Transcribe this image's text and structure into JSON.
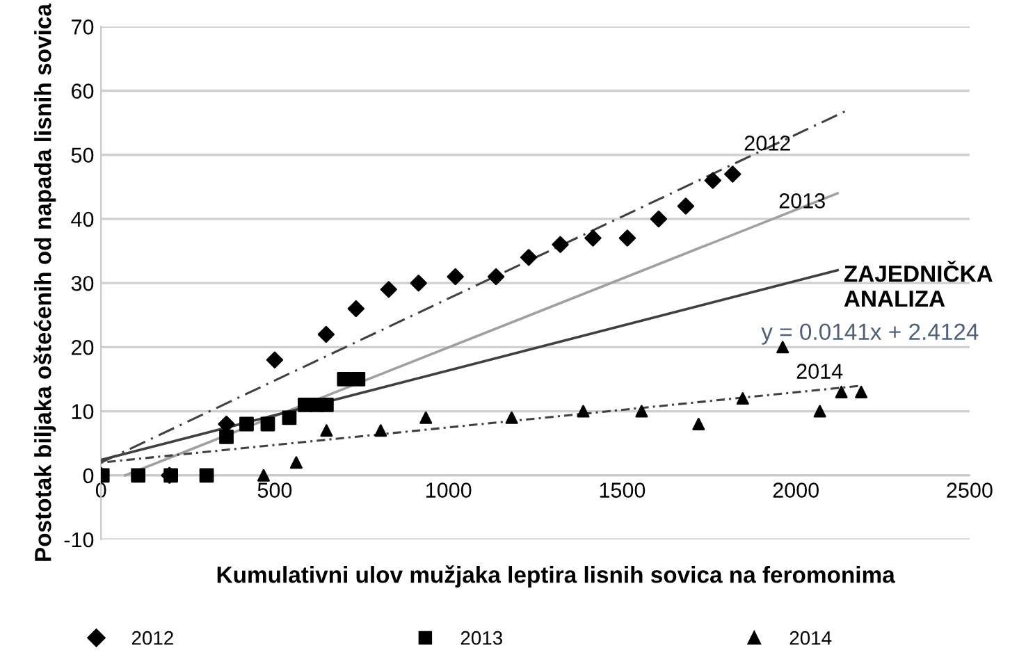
{
  "chart_data": {
    "type": "scatter",
    "ylabel": "Postotak biljaka oštećenih od napada lisnih sovica",
    "xlabel": "Kumulativni ulov mužjaka leptira lisnih sovica na feromonima",
    "xlim": [
      0,
      2500
    ],
    "xticks": [
      0,
      500,
      1000,
      1500,
      2000,
      2500
    ],
    "ylim": [
      -10,
      70
    ],
    "yticks": [
      -10,
      0,
      10,
      20,
      30,
      40,
      50,
      60,
      70
    ],
    "grid": "y",
    "legend": "bottom",
    "series": [
      {
        "name": "2012",
        "marker": "diamond",
        "color": "#000000",
        "x": [
          0,
          197,
          361,
          500,
          648,
          734,
          828,
          914,
          1020,
          1137,
          1231,
          1322,
          1416,
          1515,
          1605,
          1683,
          1761,
          1818
        ],
        "values": [
          0,
          0,
          8,
          18,
          22,
          26,
          29,
          30,
          31,
          31,
          34,
          36,
          37,
          37,
          40,
          42,
          46,
          47
        ]
      },
      {
        "name": "2013",
        "marker": "square",
        "color": "#000000",
        "x": [
          4,
          107,
          201,
          304,
          361,
          419,
          480,
          542,
          587,
          620,
          649,
          700,
          740
        ],
        "values": [
          0,
          0,
          0,
          0,
          6,
          8,
          8,
          9,
          11,
          11,
          11,
          15,
          15
        ]
      },
      {
        "name": "2014",
        "marker": "triangle",
        "color": "#000000",
        "x": [
          468,
          562,
          649,
          805,
          935,
          1182,
          1388,
          1556,
          1720,
          1847,
          1962,
          2069,
          2131,
          2188
        ],
        "values": [
          0,
          2,
          7,
          7,
          9,
          9,
          10,
          10,
          8,
          12,
          20,
          10,
          13,
          13
        ]
      },
      {
        "type": "line",
        "line_style": "dashed",
        "color": "#404040",
        "x": [
          0,
          2150
        ],
        "values": [
          2,
          57
        ]
      },
      {
        "type": "line",
        "line_style": "solid",
        "color": "#a0a0a0",
        "x": [
          70,
          2120
        ],
        "values": [
          0,
          44
        ]
      },
      {
        "type": "line",
        "line_style": "solid",
        "color": "#404040",
        "x": [
          0,
          2120
        ],
        "values": [
          2.4,
          32
        ]
      },
      {
        "type": "line",
        "line_style": "dotted",
        "color": "#404040",
        "x": [
          0,
          2190
        ],
        "values": [
          2,
          14
        ]
      }
    ],
    "annotations": [
      {
        "text": "2012",
        "x": 1850,
        "y": 50
      },
      {
        "text": "2013",
        "x": 1950,
        "y": 41
      },
      "ZAJEDNIČKA\nANALIZA",
      "y = 0.0141x + 2.4124",
      "2014"
    ]
  }
}
